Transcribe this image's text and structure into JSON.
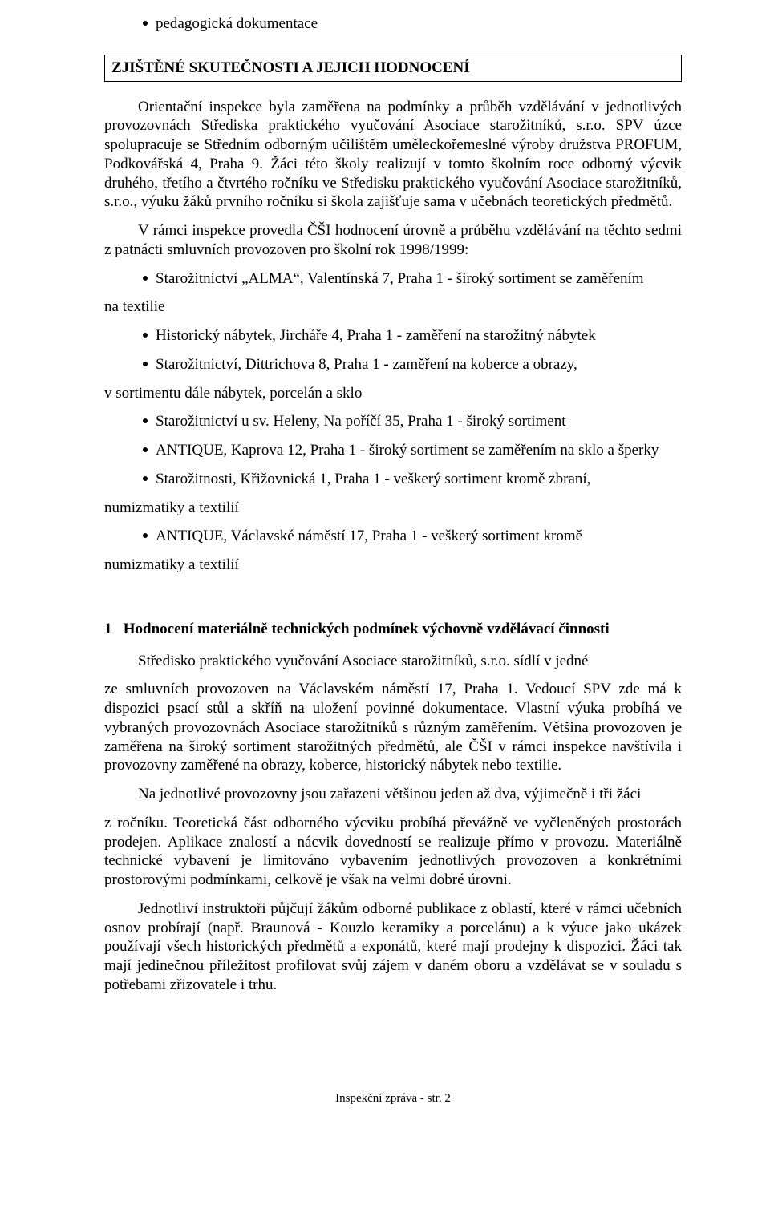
{
  "top_bullet": "pedagogická dokumentace",
  "section_title": "ZJIŠTĚNÉ SKUTEČNOSTI A JEJICH HODNOCENÍ",
  "para1": "Orientační inspekce byla zaměřena na podmínky a průběh vzdělávání v jednotlivých provozovnách Střediska praktického vyučování Asociace starožitníků, s.r.o. SPV úzce spolupracuje se Středním odborným učilištěm uměleckořemeslné výroby družstva PROFUM, Podkovářská 4, Praha 9. Žáci této školy realizují v tomto školním roce odborný výcvik druhého, třetího a čtvrtého ročníku ve Středisku praktického vyučování Asociace starožitníků, s.r.o., výuku žáků prvního ročníku si škola zajišťuje sama v učebnách teoretických předmětů.",
  "para2": "V rámci inspekce provedla ČŠI hodnocení úrovně a průběhu vzdělávání na těchto sedmi z patnácti smluvních provozoven pro školní rok 1998/1999:",
  "bullets": [
    {
      "lead": "Starožitnictví „ALMA“, Valentínská 7, Praha 1 - široký sortiment se zaměřením",
      "cont": "na textilie"
    },
    {
      "lead": "Historický nábytek, Jircháře 4, Praha 1 - zaměření na starožitný nábytek",
      "cont": null
    },
    {
      "lead": "Starožitnictví, Dittrichova 8, Praha 1 -  zaměření na koberce a obrazy,",
      "cont": "v sortimentu dále nábytek, porcelán a sklo"
    },
    {
      "lead": "Starožitnictví u sv. Heleny, Na poříčí 35, Praha 1 - široký sortiment",
      "cont": null
    },
    {
      "lead": "ANTIQUE, Kaprova 12, Praha 1 - široký sortiment se zaměřením na sklo a šperky",
      "cont": null
    },
    {
      "lead": "Starožitnosti, Křižovnická 1, Praha 1 - veškerý sortiment kromě zbraní,",
      "cont": "numizmatiky a textilií"
    },
    {
      "lead": "ANTIQUE, Václavské náměstí 17, Praha 1 - veškerý sortiment kromě",
      "cont": "numizmatiky a textilií"
    }
  ],
  "subsection_num": "1",
  "subsection_title": "Hodnocení materiálně technických podmínek výchovně vzdělávací činnosti",
  "s_para1_l1": "Středisko praktického vyučování Asociace starožitníků, s.r.o. sídlí v jedné",
  "s_para1_rest": "ze smluvních provozoven na Václavském náměstí 17, Praha 1. Vedoucí SPV zde má k dispozici psací stůl a skříň na uložení povinné dokumentace. Vlastní výuka probíhá ve vybraných provozovnách Asociace starožitníků s různým zaměřením. Většina provozoven je zaměřena na široký sortiment starožitných předmětů, ale ČŠI v rámci inspekce navštívila i provozovny zaměřené na obrazy,  koberce, historický nábytek nebo textilie.",
  "s_para2_l1": "Na jednotlivé provozovny jsou zařazeni většinou jeden až dva, výjimečně i tři žáci",
  "s_para2_rest": "z ročníku. Teoretická část odborného výcviku probíhá převážně ve vyčleněných prostorách prodejen.  Aplikace znalostí a nácvik dovedností se realizuje přímo v provozu. Materiálně technické vybavení je limitováno vybavením jednotlivých provozoven a konkrétními prostorovými podmínkami, celkově je však na velmi dobré úrovni.",
  "s_para3": "Jednotliví instruktoři půjčují žákům odborné publikace z oblastí, které v rámci učebních osnov probírají (např. Braunová - Kouzlo keramiky a porcelánu) a k výuce jako ukázek používají všech historických předmětů a exponátů, které mají prodejny k dispozici. Žáci tak mají jedinečnou příležitost profilovat svůj zájem v daném oboru a vzdělávat se v souladu s potřebami zřizovatele i trhu.",
  "footer": "Inspekční zpráva - str. 2"
}
